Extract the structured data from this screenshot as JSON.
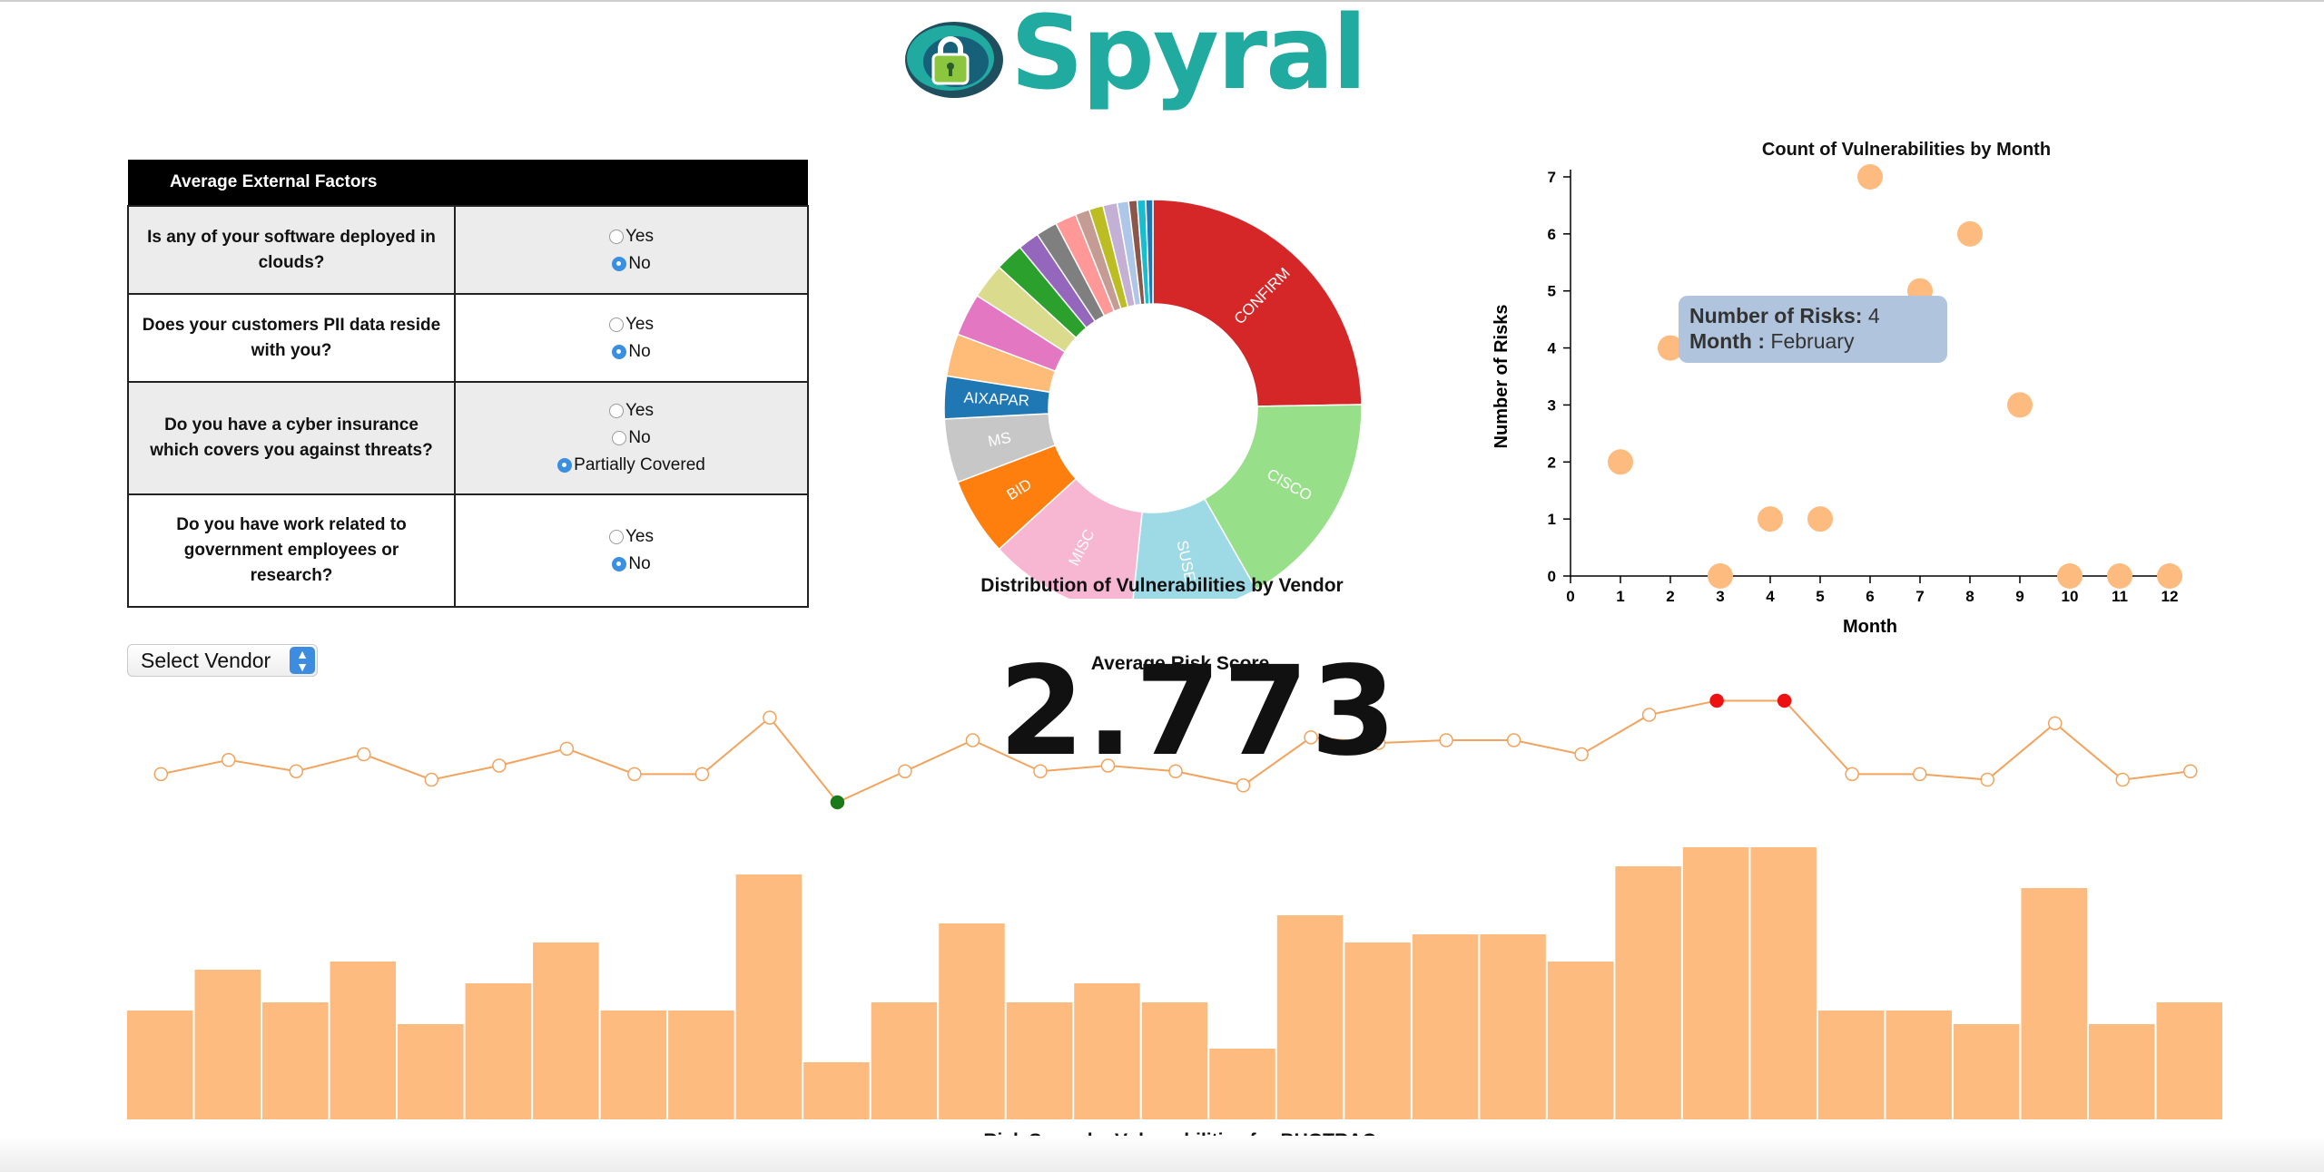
{
  "header": {
    "logo_text": "Spyral"
  },
  "factors": {
    "header": "Average External Factors",
    "rows": [
      {
        "question": "Is any of your software deployed in clouds?",
        "options": [
          "Yes",
          "No"
        ],
        "selected": "No"
      },
      {
        "question": "Does your customers PII data reside with you?",
        "options": [
          "Yes",
          "No"
        ],
        "selected": "No"
      },
      {
        "question": "Do you have a cyber insurance which covers you against threats?",
        "options": [
          "Yes",
          "No",
          "Partially Covered"
        ],
        "selected": "Partially Covered"
      },
      {
        "question": "Do you have work related to government employees or research?",
        "options": [
          "Yes",
          "No"
        ],
        "selected": "No"
      }
    ]
  },
  "vendor_select": {
    "value": "Select Vendor"
  },
  "donut": {
    "title": "Distribution of Vulnerabilities by Vendor",
    "labels": [
      "CONFIRM",
      "CISCO",
      "SUSE",
      "MISC",
      "BID",
      "MS",
      "AIXAPAR"
    ],
    "colors": [
      "#d62728",
      "#98df8a",
      "#9edae5",
      "#f7b6d2",
      "#ff7f0e",
      "#c7c7c7",
      "#1f77b4",
      "#ffbb78",
      "#e377c2",
      "#dbdb8d",
      "#2ca02c",
      "#9467bd",
      "#7f7f7f",
      "#ff9896",
      "#c49c94",
      "#bcbd22",
      "#c5b0d5",
      "#aec7e8",
      "#8c564b",
      "#17becf",
      "#1f77b4"
    ]
  },
  "scatter": {
    "title": "Count of Vulnerabilities by Month",
    "xlabel": "Month",
    "ylabel": "Number of Risks",
    "tooltip": {
      "count_label": "Number of Risks:",
      "count_value": "4",
      "month_label": "Month :",
      "month_value": "February"
    }
  },
  "score": {
    "label": "Average Risk Score",
    "value": "2.773"
  },
  "bars": {
    "title": "Risk Score by Vulnerabilities for BUGTRAQ"
  },
  "colors": {
    "accent": "#fdbb7f",
    "line": "#f2a35e",
    "logo": "#20aaa0",
    "tooltip": "#b0c4de",
    "high": "#ee1111",
    "low": "#1a7a1a"
  },
  "chart_data": [
    {
      "type": "pie",
      "title": "Distribution of Vulnerabilities by Vendor",
      "categories": [
        "CONFIRM",
        "CISCO",
        "SUSE",
        "MISC",
        "BID",
        "MS",
        "AIXAPAR",
        "",
        "",
        "",
        "",
        "",
        "",
        "",
        "",
        "",
        "",
        "",
        "",
        "",
        ""
      ],
      "values": [
        22.5,
        15.5,
        9,
        10.5,
        5.5,
        4.5,
        3,
        3,
        3,
        2.5,
        2,
        1.5,
        1.5,
        1.5,
        1,
        1,
        1,
        0.8,
        0.6,
        0.6,
        0.5
      ]
    },
    {
      "type": "scatter",
      "title": "Count of Vulnerabilities by Month",
      "xlabel": "Month",
      "ylabel": "Number of Risks",
      "x": [
        1,
        2,
        3,
        4,
        5,
        6,
        7,
        8,
        9,
        10,
        11,
        12
      ],
      "y": [
        2,
        4,
        0,
        1,
        1,
        7,
        5,
        6,
        3,
        0,
        0,
        0
      ],
      "xlim": [
        0,
        12
      ],
      "ylim": [
        0,
        7
      ],
      "x_ticks": [
        0,
        1,
        2,
        3,
        4,
        5,
        6,
        7,
        8,
        9,
        10,
        11,
        12
      ],
      "y_ticks": [
        0,
        1,
        2,
        3,
        4,
        5,
        6,
        7
      ]
    },
    {
      "type": "line",
      "values": [
        3.5,
        4.0,
        3.6,
        4.2,
        3.3,
        3.8,
        4.4,
        3.5,
        3.5,
        5.5,
        2.5,
        3.6,
        4.7,
        3.6,
        3.8,
        3.6,
        3.1,
        4.8,
        4.6,
        4.7,
        4.7,
        4.2,
        5.6,
        6.1,
        6.1,
        3.5,
        3.5,
        3.3,
        5.3,
        3.3,
        3.6
      ],
      "highlight_max": [
        23,
        24
      ],
      "highlight_min": [
        10
      ]
    },
    {
      "type": "bar",
      "title": "Risk Score by Vulnerabilities for BUGTRAQ",
      "values": [
        4.0,
        5.5,
        4.3,
        5.8,
        3.5,
        5.0,
        6.5,
        4.0,
        4.0,
        9.0,
        2.1,
        4.3,
        7.2,
        4.3,
        5.0,
        4.3,
        2.6,
        7.5,
        6.5,
        6.8,
        6.8,
        5.8,
        9.3,
        10.0,
        10.0,
        4.0,
        4.0,
        3.5,
        8.5,
        3.5,
        4.3
      ],
      "ylim": [
        0,
        10
      ]
    }
  ]
}
